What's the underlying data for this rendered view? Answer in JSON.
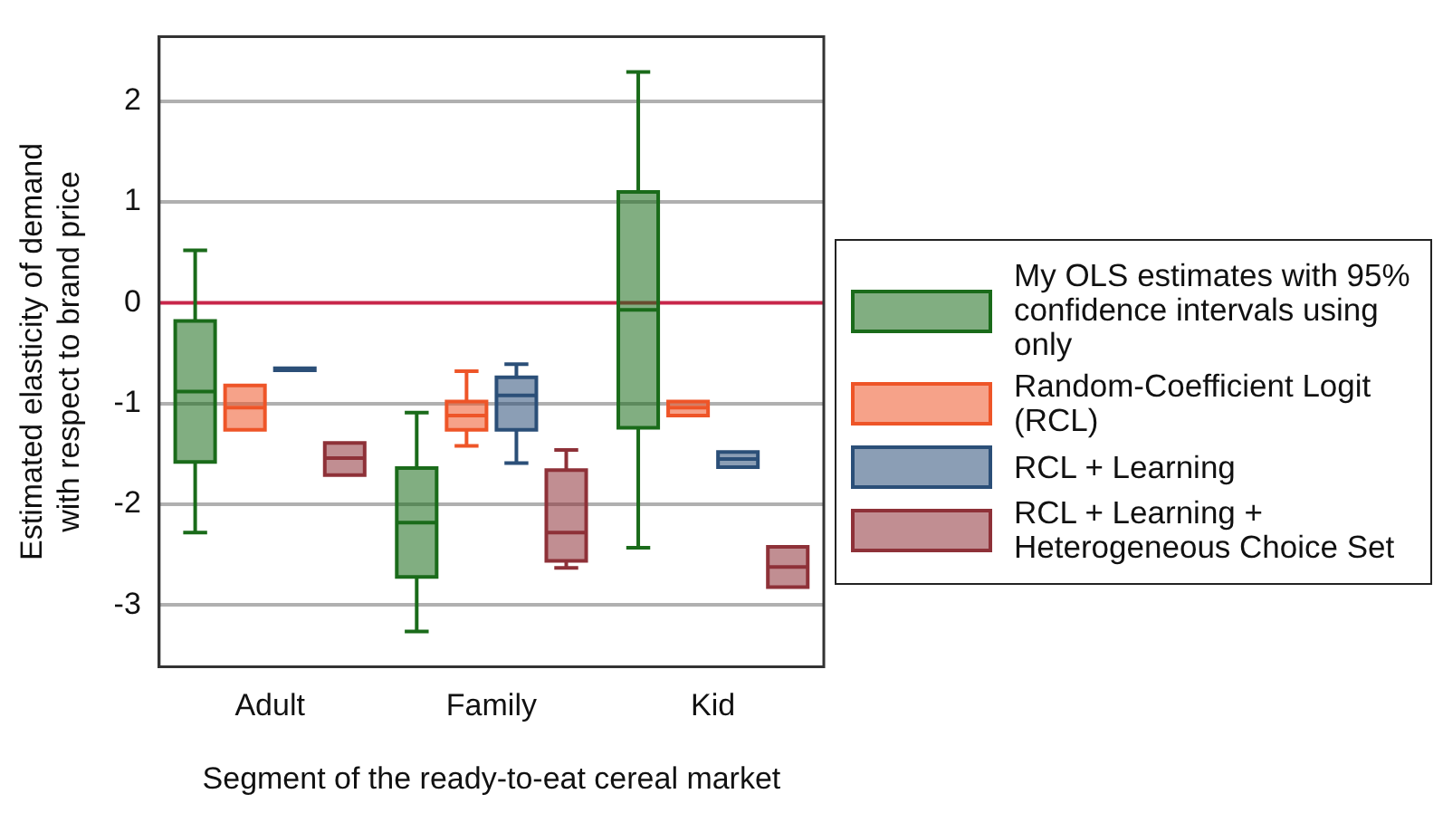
{
  "chart_data": {
    "type": "box",
    "xlabel": "Segment of the ready-to-eat cereal market",
    "ylabel": "Estimated elasticity of demand with respect to brand price",
    "categories": [
      "Adult",
      "Family",
      "Kid"
    ],
    "ylim": [
      -3.61,
      2.64
    ],
    "yticks": [
      -3,
      -2,
      -1,
      0,
      1,
      2
    ],
    "grid": "y",
    "legend": "right",
    "ref_lines": [
      {
        "axis": "y",
        "value": 0,
        "color": "#c8264a"
      }
    ],
    "series": [
      {
        "name": "My OLS estimates with 95% confidence intervals using only",
        "color": "#1a6b1a",
        "boxes": [
          {
            "low": -2.28,
            "q1": -1.58,
            "median": -0.88,
            "q3": -0.18,
            "high": 0.52
          },
          {
            "low": -3.26,
            "q1": -2.72,
            "median": -2.18,
            "q3": -1.64,
            "high": -1.09
          },
          {
            "low": -2.43,
            "q1": -1.24,
            "median": -0.07,
            "q3": 1.1,
            "high": 2.29
          }
        ]
      },
      {
        "name": "Random-Coefficient Logit (RCL)",
        "color": "#ee5528",
        "boxes": [
          {
            "low": -1.26,
            "q1": -1.26,
            "median": -1.04,
            "q3": -0.82,
            "high": -0.82
          },
          {
            "low": -1.42,
            "q1": -1.26,
            "median": -1.12,
            "q3": -0.98,
            "high": -0.68
          },
          {
            "low": -1.12,
            "q1": -1.12,
            "median": -1.04,
            "q3": -0.98,
            "high": -0.98
          }
        ]
      },
      {
        "name": "RCL + Learning",
        "color": "#2b4f78",
        "boxes": [
          {
            "low": -0.67,
            "q1": -0.67,
            "median": -0.66,
            "q3": -0.65,
            "high": -0.65
          },
          {
            "low": -1.59,
            "q1": -1.26,
            "median": -0.92,
            "q3": -0.74,
            "high": -0.61
          },
          {
            "low": -1.63,
            "q1": -1.63,
            "median": -1.55,
            "q3": -1.48,
            "high": -1.48
          }
        ]
      },
      {
        "name": "RCL + Learning + Heterogeneous Choice Set",
        "color": "#8e3138",
        "boxes": [
          {
            "low": -1.71,
            "q1": -1.71,
            "median": -1.54,
            "q3": -1.39,
            "high": -1.39
          },
          {
            "low": -2.63,
            "q1": -2.56,
            "median": -2.28,
            "q3": -1.66,
            "high": -1.46
          },
          {
            "low": -2.82,
            "q1": -2.82,
            "median": -2.62,
            "q3": -2.42,
            "high": -2.42
          }
        ]
      }
    ]
  }
}
